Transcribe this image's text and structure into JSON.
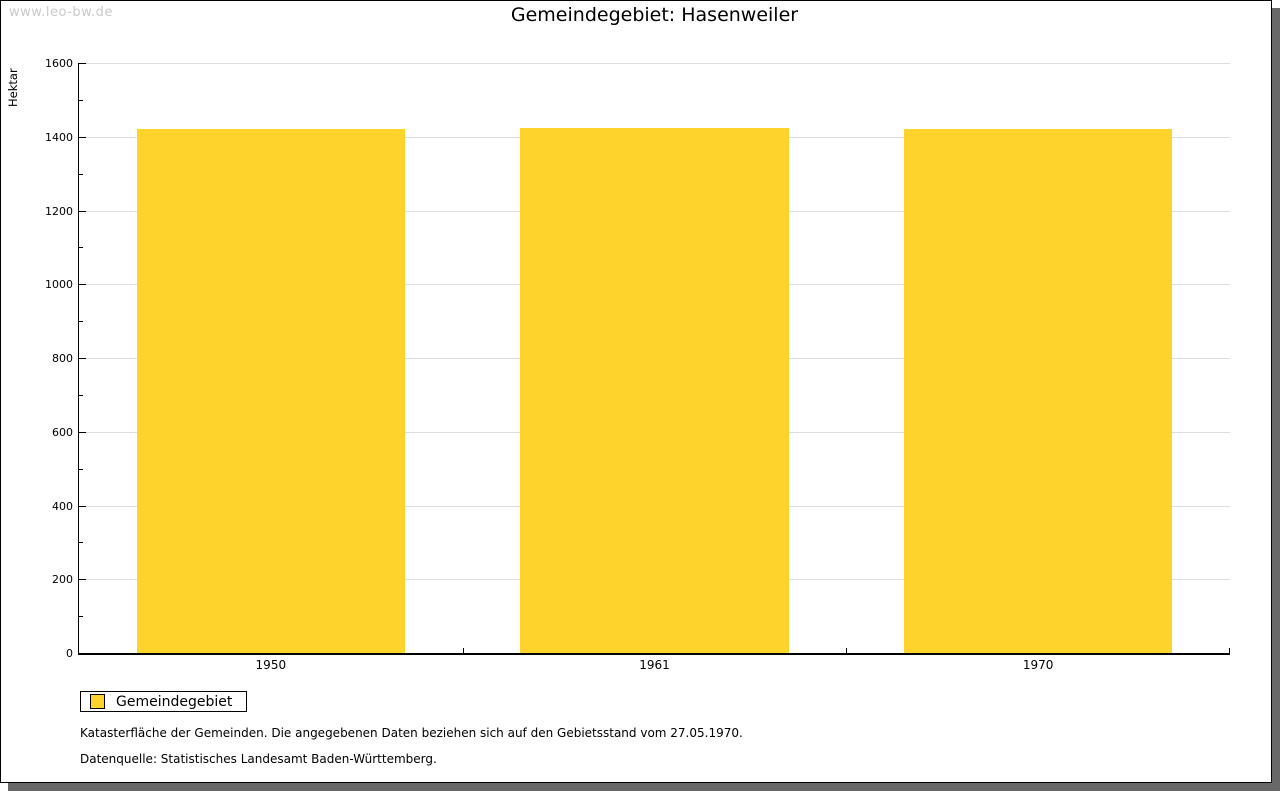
{
  "watermark": "www.leo-bw.de",
  "chart_data": {
    "type": "bar",
    "title": "Gemeindegebiet: Hasenweiler",
    "ylabel": "Hektar",
    "xlabel": "",
    "categories": [
      "1950",
      "1961",
      "1970"
    ],
    "series": [
      {
        "name": "Gemeindegebiet",
        "color": "#fdd32c",
        "values": [
          1422,
          1425,
          1421
        ]
      }
    ],
    "ylim": [
      0,
      1600
    ],
    "yticks": [
      0,
      200,
      400,
      600,
      800,
      1000,
      1200,
      1400,
      1600
    ],
    "ytick_minor_step": 100,
    "grid": "horizontal-major",
    "legend_position": "bottom-left"
  },
  "footer": {
    "line1": "Katasterfläche der Gemeinden. Die angegebenen Daten beziehen sich auf den Gebietsstand vom 27.05.1970.",
    "line2": "Datenquelle: Statistisches Landesamt Baden-Württemberg."
  },
  "colors": {
    "bar": "#fdd32c",
    "grid": "#dedede",
    "axis": "#000000",
    "shadow": "#686868",
    "watermark": "#c9c9c9"
  }
}
